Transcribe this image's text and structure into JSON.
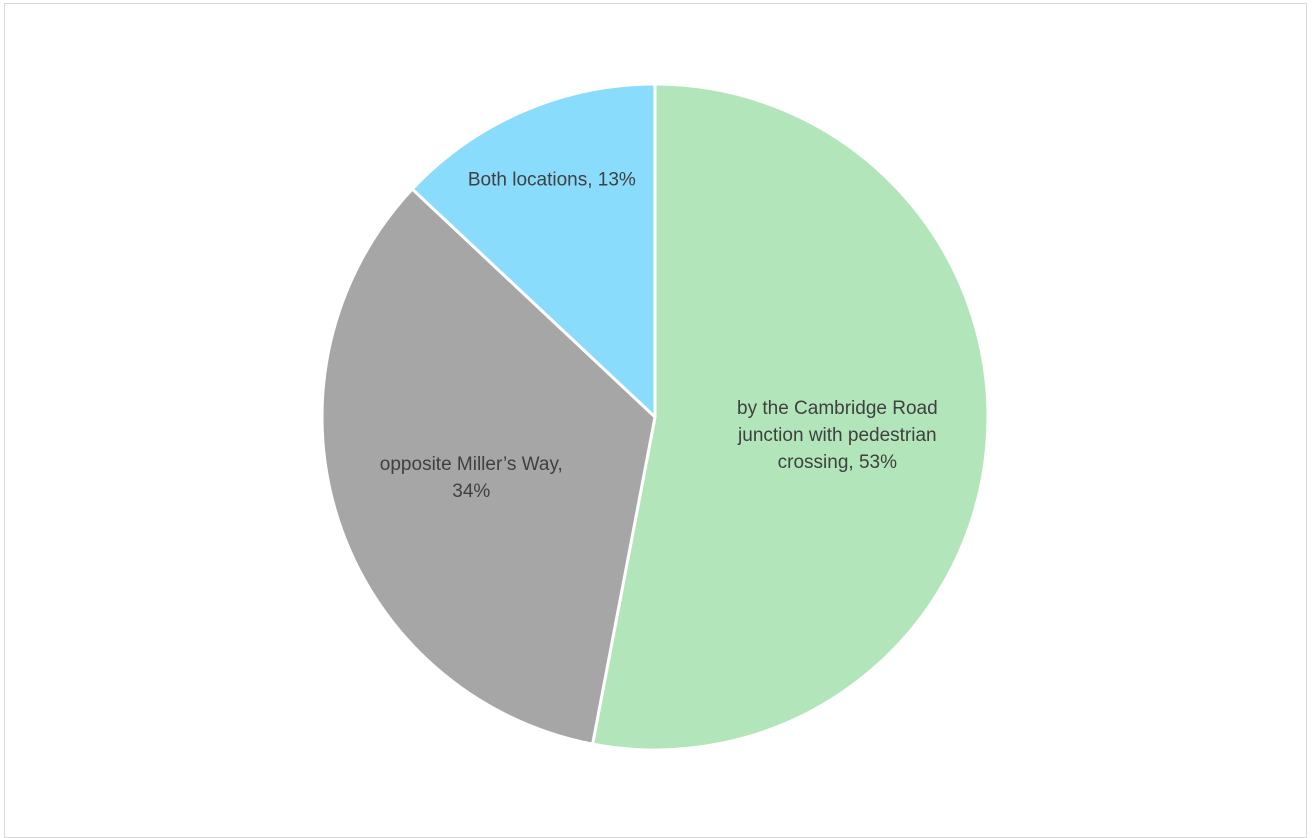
{
  "chart_data": {
    "type": "pie",
    "title": "",
    "slices": [
      {
        "name": "by the Cambridge Road junction with pedestrian crossing",
        "value": 53,
        "label_lines": [
          "by the Cambridge Road",
          "junction with pedestrian",
          "crossing, 53%"
        ],
        "color": "#b2e5b9"
      },
      {
        "name": "opposite Miller’s Way",
        "value": 34,
        "label_lines": [
          "opposite Miller’s Way,",
          "34%"
        ],
        "color": "#a6a6a6"
      },
      {
        "name": "Both locations",
        "value": 13,
        "label_lines": [
          "Both locations, 13%"
        ],
        "color": "#8adcfd"
      }
    ],
    "start": "12 o'clock",
    "direction": "clockwise",
    "legend": "none",
    "data_labels": "inside"
  }
}
